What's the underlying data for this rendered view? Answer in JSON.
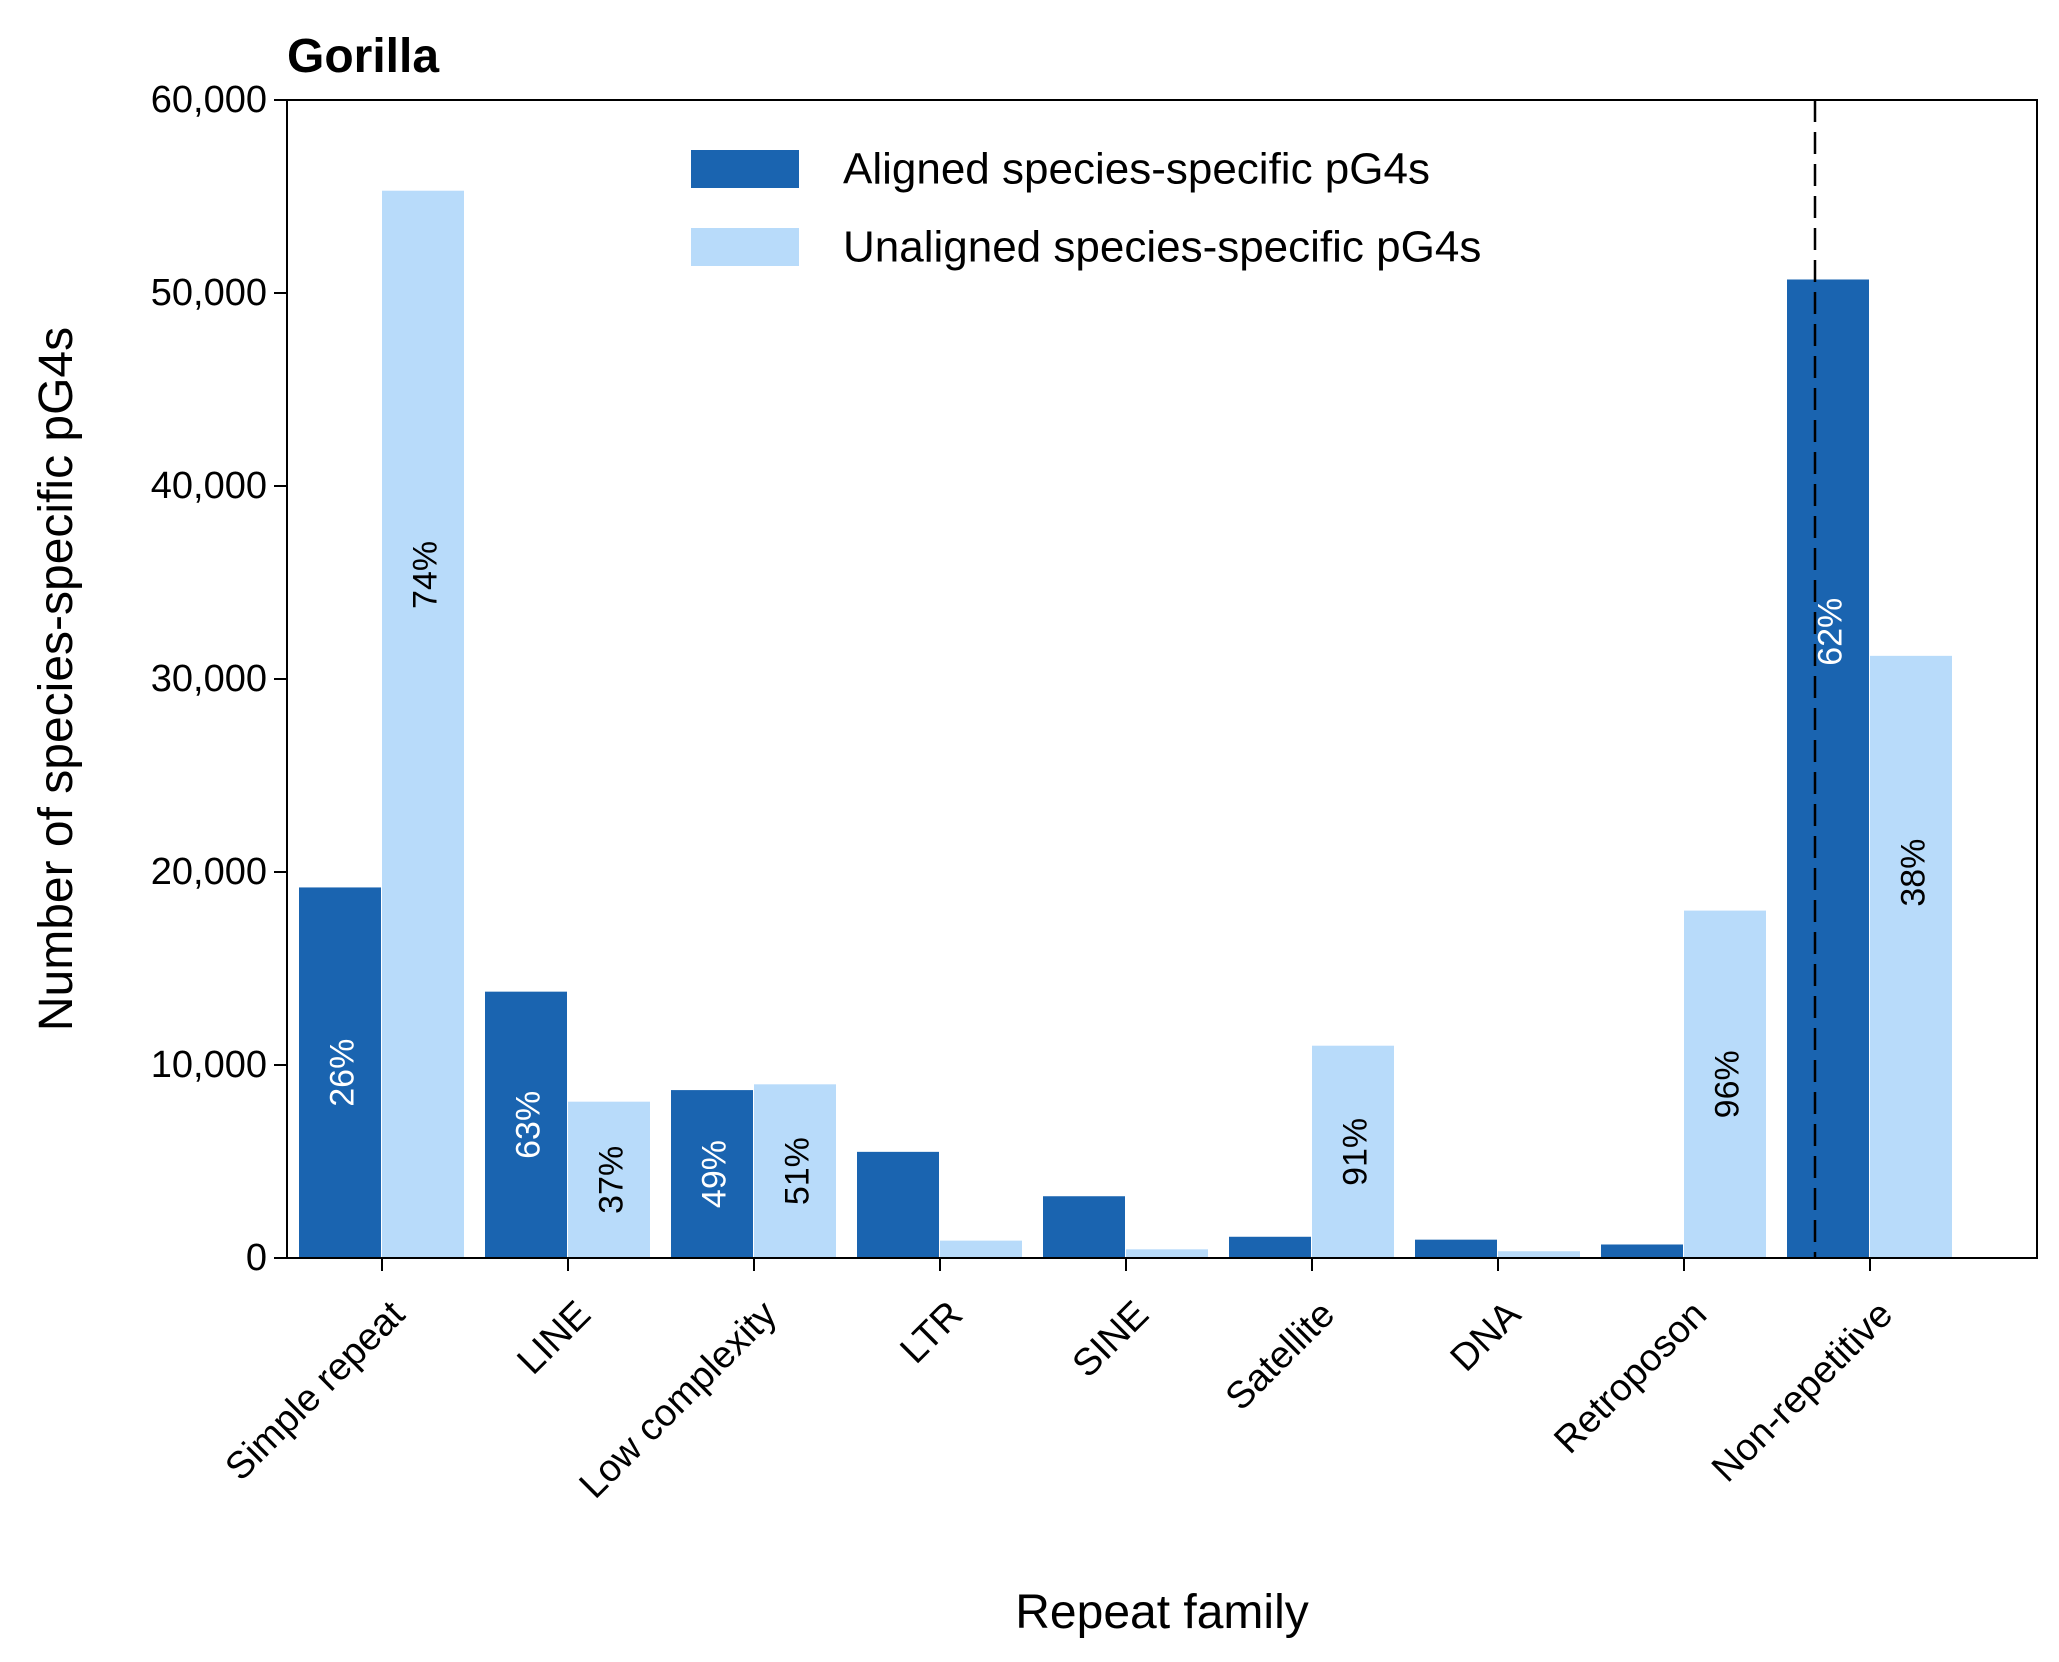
{
  "chart_data": {
    "type": "bar",
    "title": "Gorilla",
    "xlabel": "Repeat family",
    "ylabel": "Number of species-specific pG4s",
    "ylim": [
      0,
      60000
    ],
    "yticks": [
      {
        "value": 0,
        "label": "0"
      },
      {
        "value": 10000,
        "label": "10,000"
      },
      {
        "value": 20000,
        "label": "20,000"
      },
      {
        "value": 30000,
        "label": "30,000"
      },
      {
        "value": 40000,
        "label": "40,000"
      },
      {
        "value": 50000,
        "label": "50,000"
      },
      {
        "value": 60000,
        "label": "60,000"
      }
    ],
    "categories": [
      "Simple repeat",
      "LINE",
      "Low complexity",
      "LTR",
      "SINE",
      "Satellite",
      "DNA",
      "Retroposon",
      "Non-repetitive"
    ],
    "series": [
      {
        "name": "Aligned species-specific pG4s",
        "color": "#1a64b0",
        "values": [
          19200,
          13800,
          8700,
          5500,
          3200,
          1100,
          950,
          700,
          50700
        ],
        "labels": [
          "26%",
          "63%",
          "49%",
          "",
          "",
          "",
          "",
          "",
          "62%"
        ],
        "label_color": "#ffffff"
      },
      {
        "name": "Unaligned species-specific pG4s",
        "color": "#b8dbfa",
        "values": [
          55300,
          8100,
          9000,
          900,
          450,
          11000,
          350,
          18000,
          31200
        ],
        "labels": [
          "74%",
          "37%",
          "51%",
          "",
          "",
          "91%",
          "",
          "96%",
          "38%"
        ],
        "label_color": "#000000"
      }
    ],
    "legend_position": "top-center",
    "separator_after_category": "Retroposon",
    "grid": false
  }
}
